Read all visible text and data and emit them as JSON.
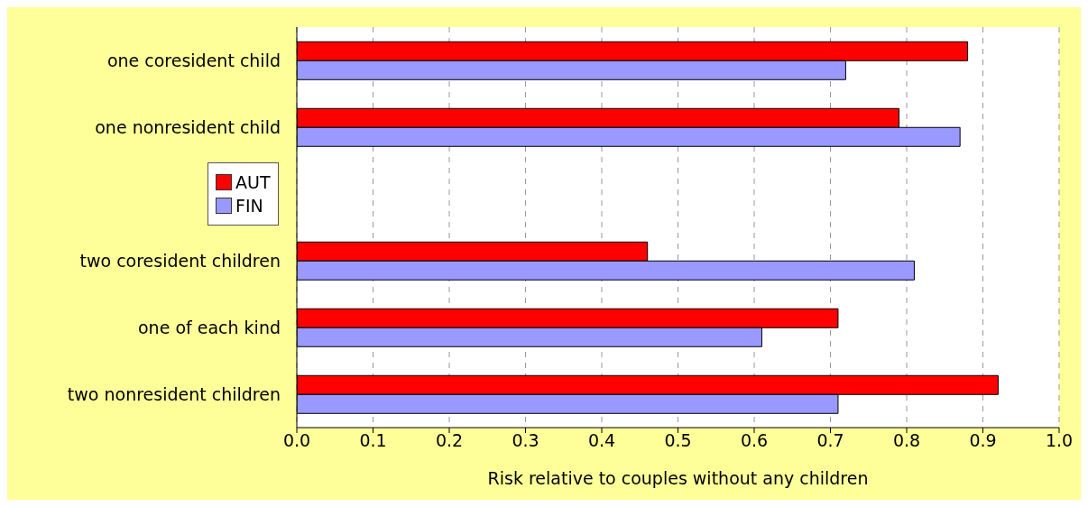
{
  "chart_data": {
    "type": "bar",
    "orientation": "horizontal",
    "xlabel": "Risk relative to couples without any children",
    "categories": [
      "one coresident child",
      "one nonresident child",
      null,
      "two coresident children",
      "one of each kind",
      "two nonresident children"
    ],
    "series": [
      {
        "name": "AUT",
        "color": "#ff0000",
        "values": [
          0.88,
          0.79,
          null,
          0.46,
          0.71,
          0.92
        ]
      },
      {
        "name": "FIN",
        "color": "#9999ff",
        "values": [
          0.72,
          0.87,
          null,
          0.81,
          0.61,
          0.71
        ]
      }
    ],
    "xlim": [
      0,
      1
    ],
    "xticks": [
      {
        "value": 0,
        "label": "0.0"
      },
      0.1,
      0.2,
      0.3,
      0.4,
      0.5,
      0.6,
      0.7,
      0.8,
      0.9,
      {
        "value": 1,
        "label": "1.0"
      }
    ],
    "grid": "x",
    "legend": "left"
  }
}
